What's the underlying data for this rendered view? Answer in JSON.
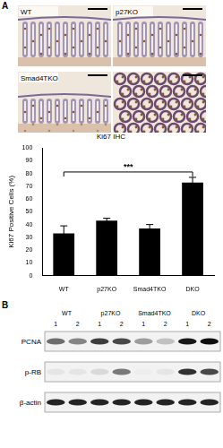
{
  "chart_data": {
    "type": "bar",
    "categories": [
      "WT",
      "p27KO",
      "Smad4TKO",
      "DKO"
    ],
    "values": [
      33,
      43,
      37,
      73
    ],
    "errors": [
      6,
      2,
      3,
      4
    ],
    "color": "#000000",
    "y_label": "Ki67 Positive Cells (%)",
    "ylim": [
      0,
      100
    ],
    "yticks": [
      0,
      10,
      20,
      30,
      40,
      50,
      60,
      70,
      80,
      90,
      100
    ],
    "grid": false,
    "annotations": [
      {
        "text": "***",
        "between": [
          "WT",
          "DKO"
        ]
      }
    ]
  },
  "panel_a": {
    "label": "A",
    "image_labels": [
      "WT",
      "p27KO",
      "Smad4TKO"
    ],
    "caption": "Ki67 IHC"
  },
  "panel_b": {
    "label": "B",
    "groups": [
      "WT",
      "p27KO",
      "Smad4TKO",
      "DKO"
    ],
    "lanes": [
      1,
      2,
      1,
      2,
      1,
      2,
      1,
      2
    ],
    "rows": [
      {
        "name": "PCNA",
        "bands": [
          0.55,
          0.45,
          0.75,
          0.7,
          0.35,
          0.2,
          0.9,
          0.95
        ]
      },
      {
        "name": "p-RB",
        "bands": [
          0.05,
          0.05,
          0.1,
          0.5,
          0.02,
          0.05,
          0.8,
          0.7
        ]
      },
      {
        "name": "β-actin",
        "bands": [
          0.85,
          0.85,
          0.85,
          0.85,
          0.85,
          0.85,
          0.85,
          0.85
        ]
      }
    ]
  }
}
